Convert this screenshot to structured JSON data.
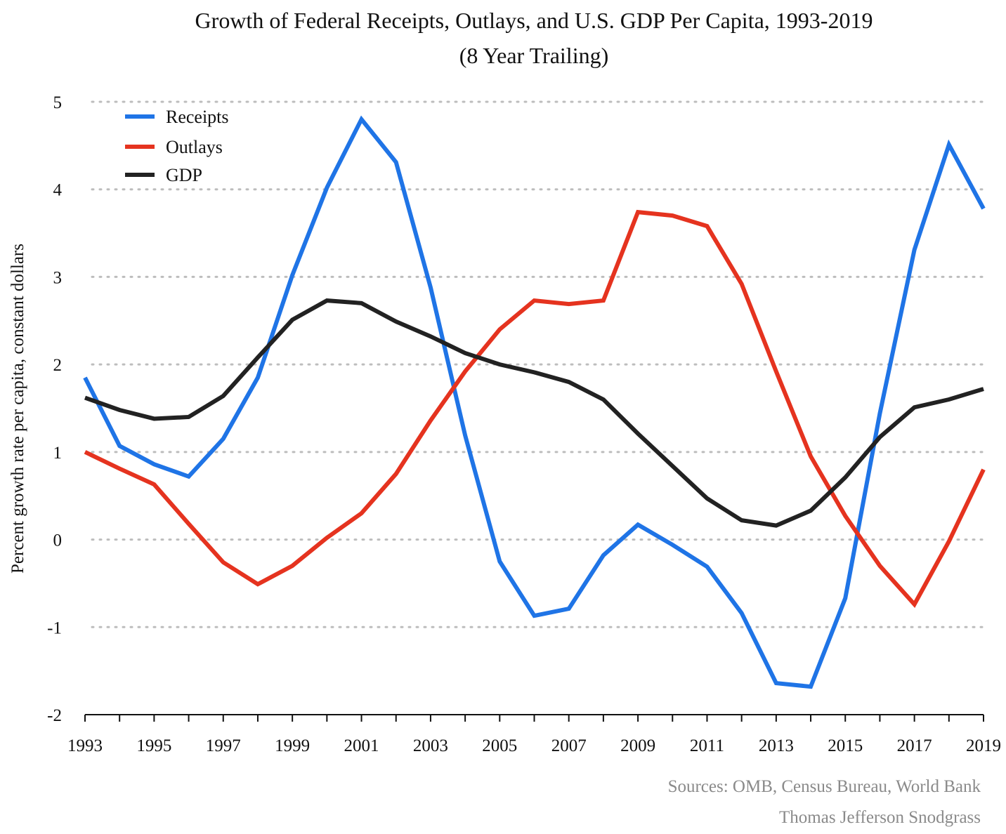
{
  "chart_data": {
    "type": "line",
    "title": "Growth of Federal Receipts, Outlays, and U.S. GDP Per Capita, 1993-2019",
    "subtitle": "(8 Year Trailing)",
    "xlabel": "",
    "ylabel": "Percent growth rate per capita, constant dollars",
    "xlim": [
      1993,
      2019
    ],
    "ylim": [
      -2,
      5
    ],
    "yticks": [
      "5",
      "4",
      "3",
      "2",
      "1",
      "0",
      "-1",
      "-2"
    ],
    "xticks": [
      "1993",
      "1995",
      "1997",
      "1999",
      "2001",
      "2003",
      "2005",
      "2007",
      "2009",
      "2011",
      "2013",
      "2015",
      "2017",
      "2019"
    ],
    "grid": "horizontal dotted",
    "legend_position": "top-left",
    "x": [
      1993,
      1994,
      1995,
      1996,
      1997,
      1998,
      1999,
      2000,
      2001,
      2002,
      2003,
      2004,
      2005,
      2006,
      2007,
      2008,
      2009,
      2010,
      2011,
      2012,
      2013,
      2014,
      2015,
      2016,
      2017,
      2018,
      2019
    ],
    "series": [
      {
        "name": "Receipts",
        "color": "#1f74e6",
        "values": [
          1.85,
          1.07,
          0.86,
          0.72,
          1.15,
          1.85,
          3.02,
          4.02,
          4.8,
          4.31,
          2.88,
          1.19,
          -0.25,
          -0.87,
          -0.79,
          -0.18,
          0.17,
          -0.06,
          -0.31,
          -0.84,
          -1.64,
          -1.68,
          -0.67,
          1.44,
          3.31,
          4.51,
          3.78
        ]
      },
      {
        "name": "Outlays",
        "color": "#e5331f",
        "values": [
          1.0,
          0.81,
          0.63,
          0.18,
          -0.26,
          -0.51,
          -0.3,
          0.02,
          0.3,
          0.75,
          1.36,
          1.92,
          2.4,
          2.73,
          2.69,
          2.73,
          3.74,
          3.7,
          3.58,
          2.92,
          1.92,
          0.95,
          0.27,
          -0.3,
          -0.74,
          -0.02,
          0.8
        ]
      },
      {
        "name": "GDP",
        "color": "#222222",
        "values": [
          1.62,
          1.48,
          1.38,
          1.4,
          1.64,
          2.08,
          2.51,
          2.73,
          2.7,
          2.49,
          2.32,
          2.13,
          2.0,
          1.91,
          1.8,
          1.6,
          1.21,
          0.84,
          0.47,
          0.22,
          0.16,
          0.33,
          0.71,
          1.17,
          1.51,
          1.6,
          1.72
        ]
      }
    ],
    "sources": "Sources: OMB, Census Bureau, World Bank",
    "author": "Thomas Jefferson Snodgrass"
  }
}
